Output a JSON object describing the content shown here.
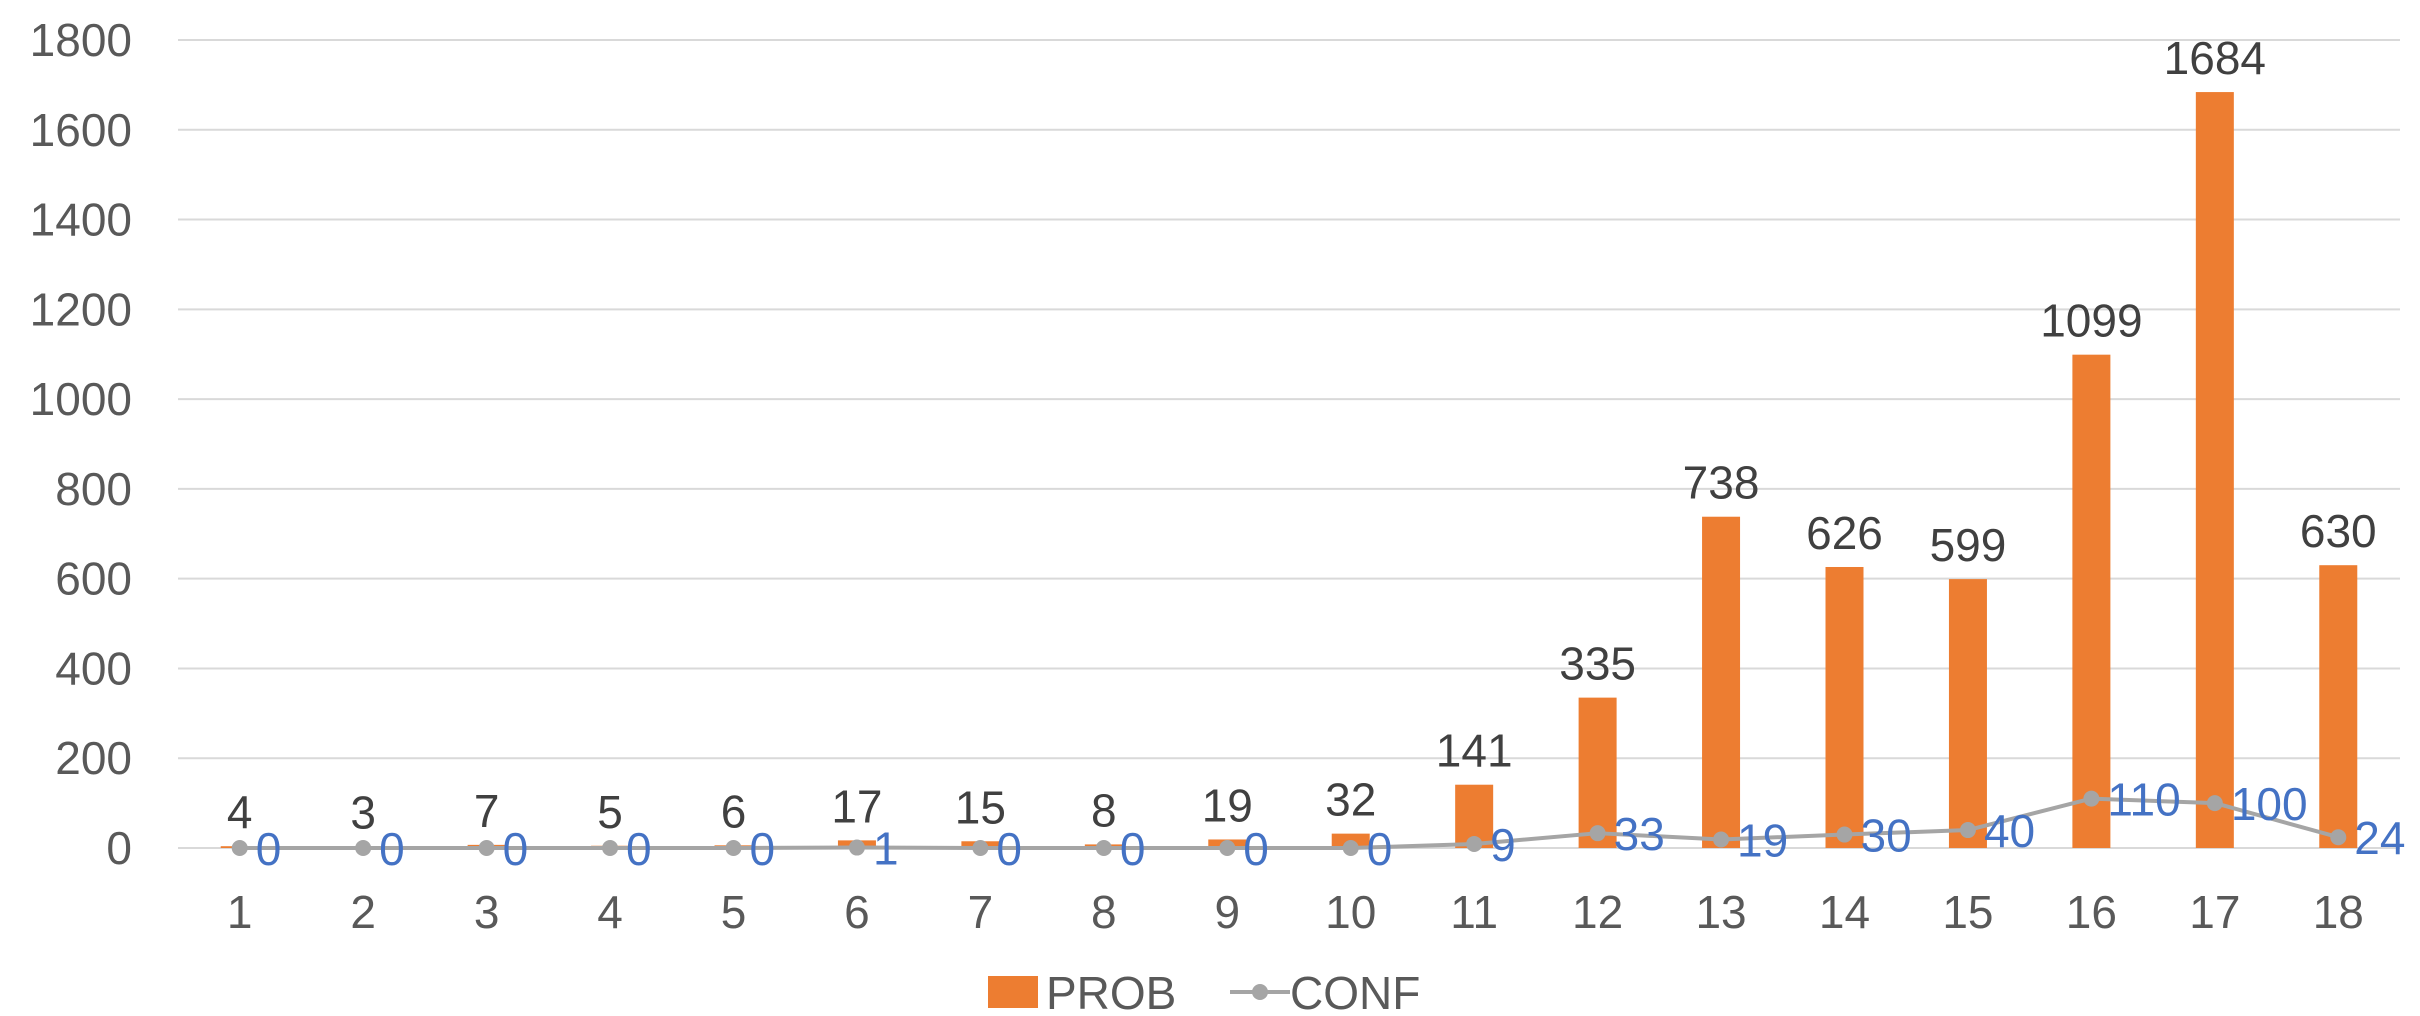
{
  "chart_data": {
    "type": "bar",
    "categories": [
      "1",
      "2",
      "3",
      "4",
      "5",
      "6",
      "7",
      "8",
      "9",
      "10",
      "11",
      "12",
      "13",
      "14",
      "15",
      "16",
      "17",
      "18"
    ],
    "series": [
      {
        "name": "PROB",
        "kind": "bar",
        "color": "#ED7D31",
        "label_color": "#404040",
        "values": [
          4,
          3,
          7,
          5,
          6,
          17,
          15,
          8,
          19,
          32,
          141,
          335,
          738,
          626,
          599,
          1099,
          1684,
          630
        ]
      },
      {
        "name": "CONF",
        "kind": "line",
        "color": "#A5A5A5",
        "label_color": "#4472C4",
        "values": [
          0,
          0,
          0,
          0,
          0,
          1,
          0,
          0,
          0,
          0,
          9,
          33,
          19,
          30,
          40,
          110,
          100,
          24
        ]
      }
    ],
    "yticks": [
      "0",
      "200",
      "400",
      "600",
      "800",
      "1000",
      "1200",
      "1400",
      "1600",
      "1800"
    ],
    "ylim": [
      0,
      1800
    ],
    "grid": true,
    "grid_color": "#D9D9D9",
    "legend": "bottom"
  }
}
